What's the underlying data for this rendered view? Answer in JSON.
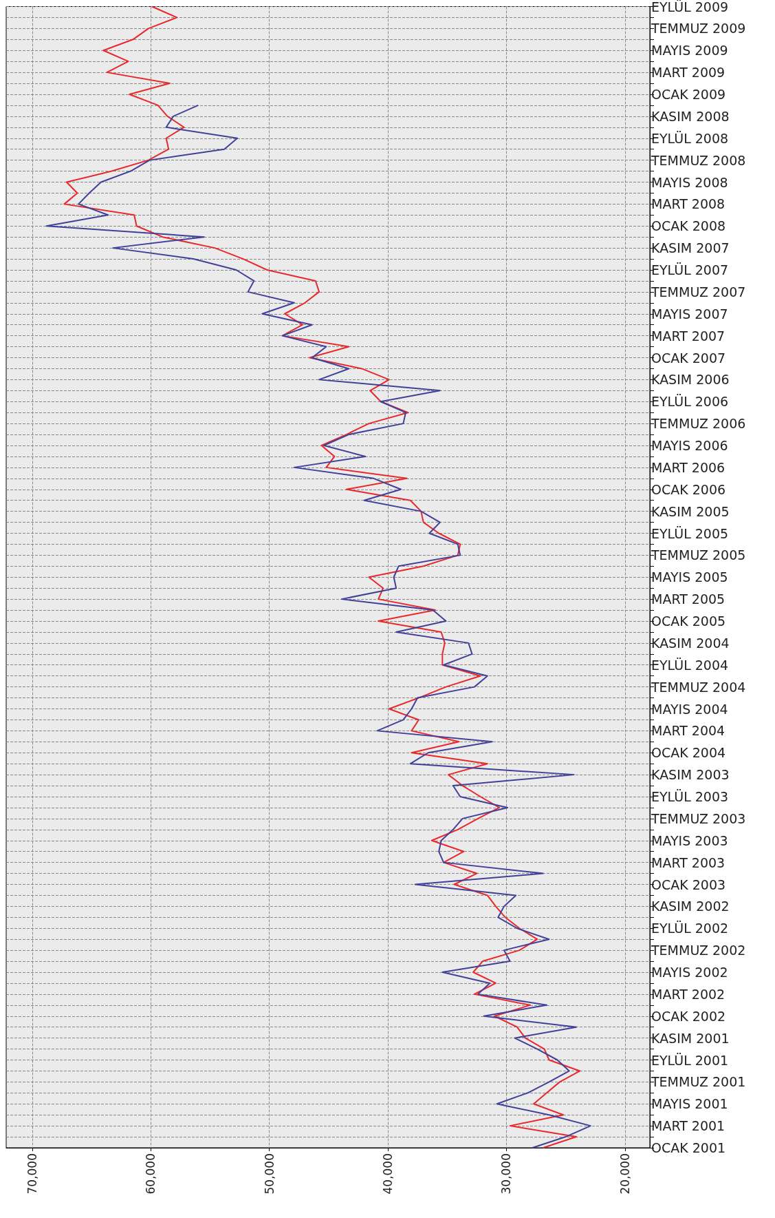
{
  "chart_data": {
    "type": "line",
    "orientation": "horizontal",
    "categories": [
      "EYLÜL 2009",
      null,
      "TEMMUZ 2009",
      null,
      "MAYIS 2009",
      null,
      "MART 2009",
      null,
      "OCAK 2009",
      null,
      "KASIM 2008",
      null,
      "EYLÜL 2008",
      null,
      "TEMMUZ 2008",
      null,
      "MAYIS 2008",
      null,
      "MART 2008",
      null,
      "OCAK 2008",
      null,
      "KASIM 2007",
      null,
      "EYLÜL 2007",
      null,
      "TEMMUZ 2007",
      null,
      "MAYIS 2007",
      null,
      "MART 2007",
      null,
      "OCAK 2007",
      null,
      "KASIM 2006",
      null,
      "EYLÜL 2006",
      null,
      "TEMMUZ 2006",
      null,
      "MAYIS 2006",
      null,
      "MART 2006",
      null,
      "OCAK 2006",
      null,
      "KASIM 2005",
      null,
      "EYLÜL 2005",
      null,
      "TEMMUZ 2005",
      null,
      "MAYIS 2005",
      null,
      "MART 2005",
      null,
      "OCAK 2005",
      null,
      "KASIM 2004",
      null,
      "EYLÜL 2004",
      null,
      "TEMMUZ 2004",
      null,
      "MAYIS 2004",
      null,
      "MART 2004",
      null,
      "OCAK 2004",
      null,
      "KASIM 2003",
      null,
      "EYLÜL 2003",
      null,
      "TEMMUZ 2003",
      null,
      "MAYIS 2003",
      null,
      "MART 2003",
      null,
      "OCAK 2003",
      null,
      "KASIM 2002",
      null,
      "EYLÜL 2002",
      null,
      "TEMMUZ 2002",
      null,
      "MAYIS 2002",
      null,
      "MART 2002",
      null,
      "OCAK 2002",
      null,
      "KASIM 2001",
      null,
      "EYLÜL 2001",
      null,
      "TEMMUZ 2001",
      null,
      "MAYIS 2001",
      null,
      "MART 2001",
      null,
      "OCAK 2001"
    ],
    "series": [
      {
        "color": "#e8282a",
        "values": [
          59900,
          57800,
          60200,
          61500,
          64000,
          61900,
          63700,
          58400,
          61800,
          59400,
          58600,
          57200,
          58700,
          58500,
          60200,
          63300,
          67100,
          66200,
          67300,
          61400,
          61200,
          59000,
          54600,
          52200,
          50200,
          46100,
          45800,
          47000,
          48700,
          47200,
          48900,
          43300,
          46600,
          42200,
          39900,
          41500,
          40600,
          38300,
          41600,
          43500,
          45600,
          44500,
          45200,
          38400,
          43500,
          38100,
          37200,
          37000,
          35700,
          33900,
          34100,
          37000,
          41600,
          40400,
          40800,
          36000,
          40800,
          35500,
          35200,
          35400,
          35400,
          32200,
          35100,
          37400,
          39900,
          37400,
          38000,
          34000,
          38000,
          31600,
          34900,
          33700,
          32200,
          30600,
          32400,
          34100,
          36300,
          33600,
          35300,
          32500,
          34400,
          31600,
          30900,
          30100,
          28900,
          27400,
          28900,
          32000,
          32800,
          30900,
          32700,
          28000,
          31000,
          29100,
          28400,
          26800,
          26400,
          23800,
          25500,
          26600,
          27700,
          25200,
          29700,
          24100,
          26900
        ]
      },
      {
        "color": "#40409a",
        "values": [
          null,
          null,
          null,
          null,
          null,
          null,
          null,
          null,
          null,
          56000,
          58100,
          58700,
          52700,
          53800,
          60100,
          61700,
          64200,
          65200,
          66100,
          63600,
          68800,
          55500,
          63200,
          56400,
          52800,
          51300,
          51800,
          47900,
          50600,
          46400,
          48900,
          45200,
          46400,
          43300,
          45800,
          35600,
          40600,
          38500,
          38700,
          43300,
          45400,
          41900,
          47900,
          41200,
          38900,
          42000,
          37200,
          35600,
          36500,
          34100,
          33900,
          39100,
          39500,
          39300,
          43900,
          36200,
          35100,
          39300,
          33200,
          32900,
          35300,
          31600,
          32700,
          37500,
          38000,
          38700,
          40900,
          31200,
          36600,
          38100,
          24300,
          34500,
          33900,
          29900,
          33700,
          34500,
          35500,
          35700,
          35300,
          26900,
          37700,
          29200,
          30200,
          30700,
          29100,
          26400,
          30200,
          29700,
          35400,
          31400,
          32400,
          26600,
          31900,
          24100,
          29300,
          27400,
          25700,
          24700,
          26400,
          28200,
          30800,
          26400,
          22900,
          25000,
          27800
        ]
      }
    ],
    "xlim": [
      72200,
      17900
    ],
    "xticks": [
      {
        "value": 70000,
        "label": "70,000"
      },
      {
        "value": 60000,
        "label": "60,000"
      },
      {
        "value": 50000,
        "label": "50,000"
      },
      {
        "value": 40000,
        "label": "40,000"
      },
      {
        "value": 30000,
        "label": "30,000"
      },
      {
        "value": 20000,
        "label": "20,000"
      }
    ],
    "grid": true,
    "marker": "none",
    "line_style": "solid"
  }
}
